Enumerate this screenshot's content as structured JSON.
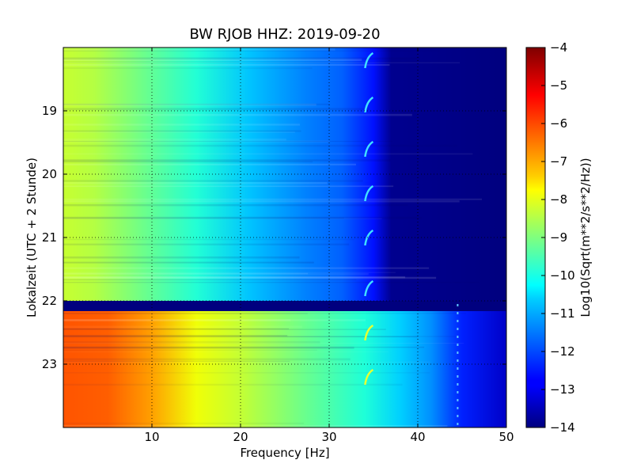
{
  "chart_data": {
    "type": "heatmap",
    "title": "BW RJOB HHZ: 2019-09-20",
    "xlabel": "Frequency [Hz]",
    "ylabel": "Lokalzeit (UTC + 2 Stunde)",
    "xlim": [
      0,
      50
    ],
    "ylim": [
      24,
      18
    ],
    "x_ticks": [
      10,
      20,
      30,
      40,
      50
    ],
    "y_ticks": [
      19,
      20,
      21,
      22,
      23
    ],
    "grid": true,
    "colormap": "jet",
    "colorbar": {
      "label": "Log10(Sqrt(m**2/s**2/Hz))",
      "range": [
        -14,
        -4
      ],
      "ticks": [
        -4,
        -5,
        -6,
        -7,
        -8,
        -9,
        -10,
        -11,
        -12,
        -13,
        -14
      ]
    },
    "segments": [
      {
        "name": "before gap",
        "time_range": [
          18,
          21.9
        ],
        "level_at_0hz": -8.2,
        "level_at_20hz": -10.3,
        "level_at_35hz": -12.0,
        "floor_from_hz": 41,
        "floor_level": -14.0
      },
      {
        "name": "no data",
        "time_range": [
          21.9,
          22.05
        ],
        "level": -14.0
      },
      {
        "name": "after gap",
        "time_range": [
          22.05,
          24
        ],
        "level_at_0hz": -5.3,
        "level_at_10hz": -5.8,
        "level_at_20hz": -8.0,
        "level_at_35hz": -10.0,
        "floor_from_hz": 45,
        "floor_level": -12.8
      }
    ],
    "features": [
      {
        "type": "tonal line",
        "frequency_hz": 34.5,
        "times": [
          18.2,
          18.9,
          19.6,
          20.3,
          21.0,
          21.8,
          22.5,
          23.2
        ]
      },
      {
        "type": "tonal line",
        "frequency_hz": 44.5,
        "time_range": [
          22.05,
          24
        ]
      }
    ]
  }
}
